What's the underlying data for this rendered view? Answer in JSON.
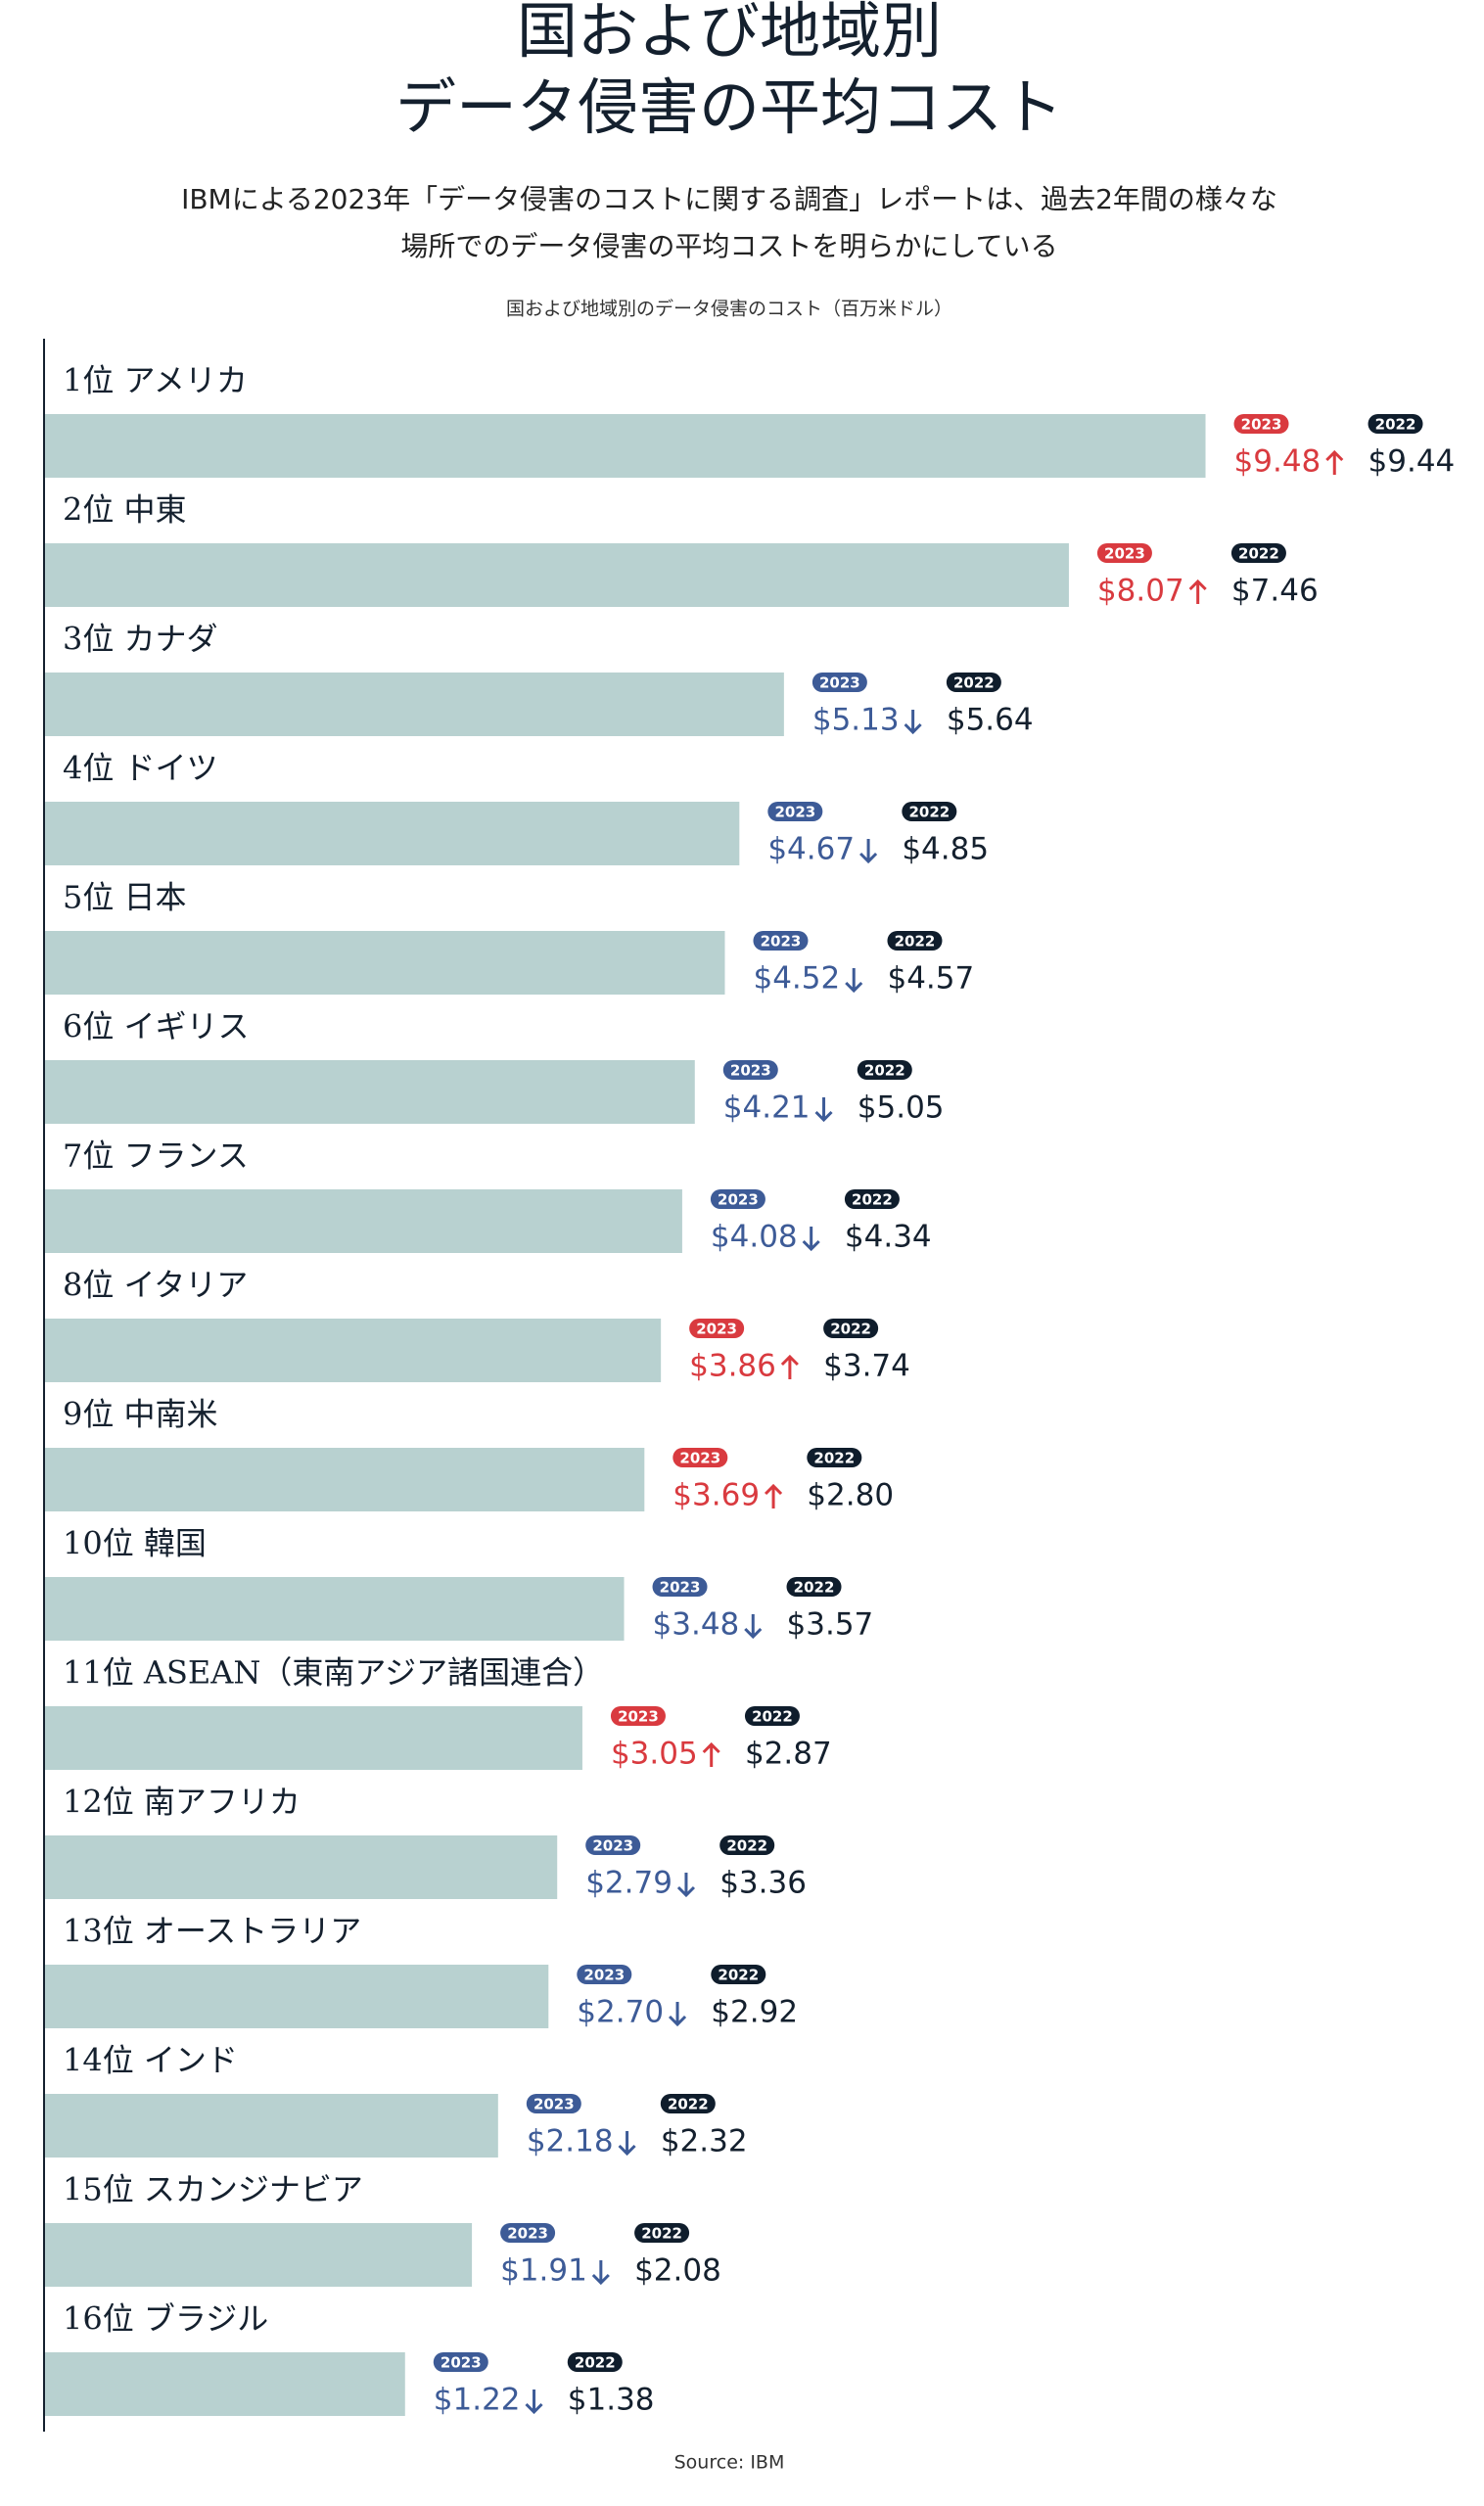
{
  "chart_data": {
    "type": "bar",
    "orientation": "horizontal",
    "title": [
      "国および地域別",
      "データ侵害の平均コスト"
    ],
    "subtitle": [
      "IBMによる2023年「データ侵害のコストに関する調査」レポートは、過去2年間の様々な",
      "場所でのデータ侵害の平均コストを明らかにしている"
    ],
    "caption": "国および地域別のデータ侵害のコスト（百万米ドル）",
    "source": "Source: IBM",
    "categories": [
      "1位 アメリカ",
      "2位 中東",
      "3位 カナダ",
      "4位 ドイツ",
      "5位 日本",
      "6位 イギリス",
      "7位 フランス",
      "8位 イタリア",
      "9位 中南米",
      "10位 韓国",
      "11位 ASEAN（東南アジア諸国連合）",
      "12位 南アフリカ",
      "13位 オーストラリア",
      "14位 インド",
      "15位 スカンジナビア",
      "16位 ブラジル"
    ],
    "series": [
      {
        "name": "2023",
        "color": "#b8d1d0",
        "values": [
          9.48,
          8.07,
          5.13,
          4.67,
          4.52,
          4.21,
          4.08,
          3.86,
          3.69,
          3.48,
          3.05,
          2.79,
          2.7,
          2.18,
          1.91,
          1.22
        ],
        "value_labels": [
          "$9.48",
          "$8.07",
          "$5.13",
          "$4.67",
          "$4.52",
          "$4.21",
          "$4.08",
          "$3.86",
          "$3.69",
          "$3.48",
          "$3.05",
          "$2.79",
          "$2.70",
          "$2.18",
          "$1.91",
          "$1.22"
        ]
      },
      {
        "name": "2022",
        "color": "#0f1d2c",
        "values": [
          9.44,
          7.46,
          5.64,
          4.85,
          4.57,
          5.05,
          4.34,
          3.74,
          2.8,
          3.57,
          2.87,
          3.36,
          2.92,
          2.32,
          2.08,
          1.38
        ],
        "value_labels": [
          "$9.44",
          "$7.46",
          "$5.64",
          "$4.85",
          "$4.57",
          "$5.05",
          "$4.34",
          "$3.74",
          "$2.80",
          "$3.57",
          "$2.87",
          "$3.36",
          "$2.92",
          "$2.32",
          "$2.08",
          "$1.38"
        ]
      }
    ],
    "increase_color": "#d93a3f",
    "decrease_color": "#3d5b97"
  }
}
